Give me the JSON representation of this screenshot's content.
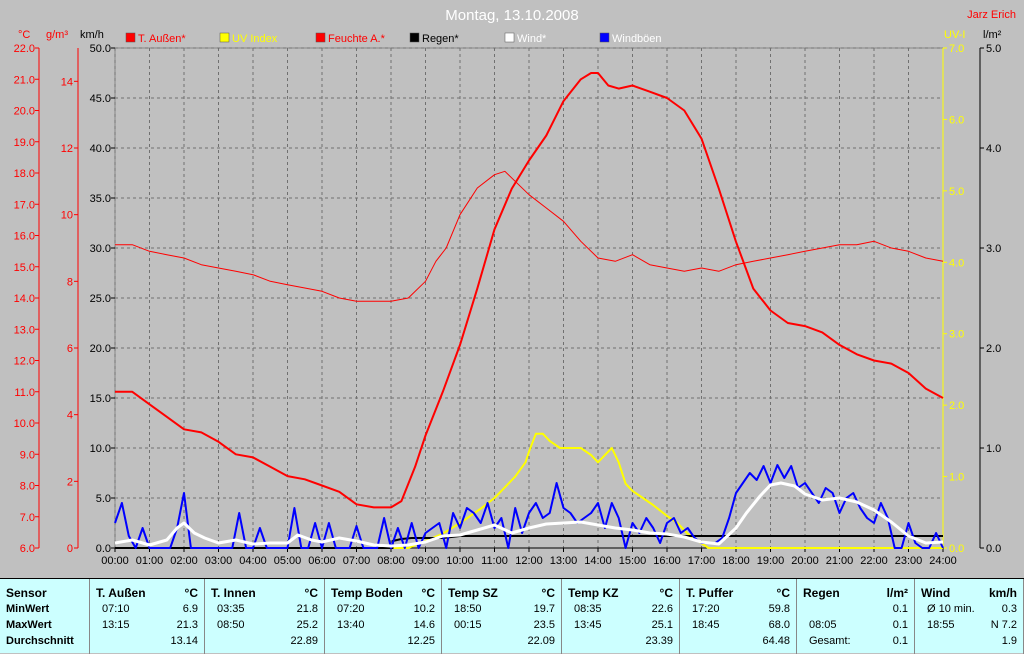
{
  "title": "Montag, 13.10.2008",
  "author": "Jarz Erich",
  "axis_units": {
    "temp": "°C",
    "humidity": "g/m³",
    "wind": "km/h",
    "uv": "UV-I",
    "rain": "l/m²"
  },
  "legend": [
    {
      "label": "T. Außen*",
      "color": "#ff0000",
      "text_color": "#ff0000"
    },
    {
      "label": "UV Index",
      "color": "#ffff00",
      "text_color": "#ffff00"
    },
    {
      "label": "Feuchte A.*",
      "color": "#ff0000",
      "text_color": "#ff0000"
    },
    {
      "label": "Regen*",
      "color": "#000000",
      "text_color": "#000000"
    },
    {
      "label": "Wind*",
      "color": "#ffffff",
      "text_color": "#ffffff"
    },
    {
      "label": "Windböen",
      "color": "#0000ff",
      "text_color": "#ffffff"
    }
  ],
  "chart_data": {
    "type": "line",
    "x_ticks": [
      "00:00",
      "01:00",
      "02:00",
      "03:00",
      "04:00",
      "05:00",
      "06:00",
      "07:00",
      "08:00",
      "09:00",
      "10:00",
      "11:00",
      "12:00",
      "13:00",
      "14:00",
      "15:00",
      "16:00",
      "17:00",
      "18:00",
      "19:00",
      "20:00",
      "21:00",
      "22:00",
      "23:00",
      "24:00"
    ],
    "axes": {
      "temp_c": {
        "ticks": [
          "6.0",
          "7.0",
          "8.0",
          "9.0",
          "10.0",
          "11.0",
          "12.0",
          "13.0",
          "14.0",
          "15.0",
          "16.0",
          "17.0",
          "18.0",
          "19.0",
          "20.0",
          "21.0",
          "22.0"
        ],
        "range": [
          6,
          22
        ],
        "color": "#ff0000"
      },
      "humidity_gm3": {
        "ticks": [
          "0",
          "2",
          "4",
          "6",
          "8",
          "10",
          "12",
          "14"
        ],
        "range": [
          0,
          15
        ],
        "color": "#ff0000"
      },
      "wind_kmh": {
        "ticks": [
          "0.0",
          "5.0",
          "10.0",
          "15.0",
          "20.0",
          "25.0",
          "30.0",
          "35.0",
          "40.0",
          "45.0",
          "50.0"
        ],
        "range": [
          0,
          50
        ],
        "color": "#000000"
      },
      "uv": {
        "ticks": [
          "0.0",
          "1.0",
          "2.0",
          "3.0",
          "4.0",
          "5.0",
          "6.0",
          "7.0"
        ],
        "range": [
          0,
          7
        ],
        "color": "#ffff00"
      },
      "rain_lm2": {
        "ticks": [
          "0.0",
          "1.0",
          "2.0",
          "3.0",
          "4.0",
          "5.0"
        ],
        "range": [
          0,
          5
        ],
        "color": "#000000"
      }
    },
    "grid": true,
    "series": [
      {
        "name": "T. Außen*",
        "axis": "temp_c",
        "color": "#ff0000",
        "width": 2,
        "x": [
          0,
          0.5,
          1,
          1.5,
          2,
          2.5,
          3,
          3.5,
          4,
          4.5,
          5,
          5.5,
          6,
          6.5,
          7,
          7.5,
          8,
          8.3,
          8.7,
          9,
          9.5,
          10,
          10.5,
          11,
          11.5,
          12,
          12.5,
          13,
          13.5,
          13.8,
          14,
          14.3,
          14.6,
          15,
          15.5,
          16,
          16.5,
          17,
          17.5,
          18,
          18.5,
          19,
          19.5,
          20,
          20.5,
          21,
          21.5,
          22,
          22.5,
          23,
          23.5,
          24
        ],
        "y": [
          11.0,
          11.0,
          10.6,
          10.2,
          9.8,
          9.7,
          9.4,
          9.0,
          8.9,
          8.6,
          8.3,
          8.2,
          8.0,
          7.8,
          7.4,
          7.3,
          7.3,
          7.5,
          8.6,
          9.6,
          11.0,
          12.5,
          14.3,
          16.2,
          17.5,
          18.4,
          19.2,
          20.3,
          21.0,
          21.2,
          21.2,
          20.8,
          20.7,
          20.8,
          20.6,
          20.4,
          20.0,
          19.1,
          17.5,
          15.8,
          14.3,
          13.6,
          13.2,
          13.1,
          12.9,
          12.5,
          12.2,
          12.0,
          11.9,
          11.6,
          11.1,
          10.8
        ]
      },
      {
        "name": "Feuchte A.*",
        "axis": "humidity_gm3",
        "color": "#ff0000",
        "width": 1,
        "x": [
          0,
          0.5,
          1,
          1.5,
          2,
          2.5,
          3,
          3.5,
          4,
          4.5,
          5,
          5.5,
          6,
          6.5,
          7,
          7.5,
          8,
          8.5,
          9,
          9.3,
          9.6,
          10,
          10.5,
          11,
          11.3,
          11.6,
          12,
          12.5,
          13,
          13.5,
          14,
          14.5,
          15,
          15.5,
          16,
          16.5,
          17,
          17.5,
          18,
          18.5,
          19,
          19.5,
          20,
          20.5,
          21,
          21.5,
          22,
          22.5,
          23,
          23.5,
          24
        ],
        "y": [
          9.1,
          9.1,
          8.9,
          8.8,
          8.7,
          8.5,
          8.4,
          8.3,
          8.2,
          8.0,
          7.9,
          7.8,
          7.7,
          7.5,
          7.4,
          7.4,
          7.4,
          7.5,
          8.0,
          8.6,
          9.0,
          10.0,
          10.8,
          11.2,
          11.3,
          11.0,
          10.6,
          10.2,
          9.8,
          9.2,
          8.7,
          8.6,
          8.8,
          8.5,
          8.4,
          8.3,
          8.4,
          8.3,
          8.5,
          8.6,
          8.7,
          8.8,
          8.9,
          9.0,
          9.1,
          9.1,
          9.2,
          9.0,
          8.9,
          8.7,
          8.6
        ]
      },
      {
        "name": "UV Index",
        "axis": "uv",
        "color": "#ffff00",
        "width": 2,
        "x": [
          0,
          8.5,
          9,
          9.5,
          10,
          10.3,
          10.6,
          11,
          11.3,
          11.6,
          11.9,
          12,
          12.2,
          12.4,
          12.6,
          12.9,
          13.2,
          13.5,
          13.8,
          14,
          14.2,
          14.4,
          14.6,
          14.8,
          15,
          15.3,
          15.6,
          16,
          16.3,
          16.6,
          16.9,
          17.2,
          24
        ],
        "y": [
          0,
          0,
          0.1,
          0.2,
          0.35,
          0.45,
          0.55,
          0.7,
          0.85,
          1.0,
          1.2,
          1.35,
          1.6,
          1.6,
          1.5,
          1.4,
          1.4,
          1.4,
          1.3,
          1.2,
          1.3,
          1.4,
          1.2,
          0.9,
          0.8,
          0.7,
          0.6,
          0.45,
          0.35,
          0.2,
          0.1,
          0,
          0
        ]
      },
      {
        "name": "Regen*",
        "axis": "rain_lm2",
        "color": "#000000",
        "width": 2,
        "x": [
          0,
          8.05,
          8.05,
          8.3,
          8.6,
          9,
          9.5,
          10,
          24
        ],
        "y": [
          0,
          0,
          0.07,
          0.09,
          0.1,
          0.1,
          0.1,
          0.12,
          0.12
        ]
      },
      {
        "name": "Wind*",
        "axis": "wind_kmh",
        "color": "#ffffff",
        "width": 3,
        "x": [
          0,
          0.5,
          1,
          1.5,
          1.8,
          2,
          2.3,
          2.6,
          3,
          3.5,
          4,
          4.5,
          5,
          5.3,
          5.7,
          6,
          6.5,
          7,
          7.5,
          8,
          8.5,
          9,
          9.5,
          10,
          10.5,
          11,
          11.5,
          12,
          12.5,
          13,
          13.5,
          14,
          14.5,
          15,
          15.5,
          16,
          16.5,
          17,
          17.5,
          18,
          18.3,
          18.7,
          19,
          19.3,
          19.7,
          20,
          20.5,
          21,
          21.5,
          22,
          22.5,
          23,
          23.5,
          24
        ],
        "y": [
          0.5,
          0.8,
          0.3,
          0.8,
          2.0,
          2.5,
          1.5,
          1.0,
          0.5,
          0.8,
          0.4,
          0.5,
          0.5,
          1.3,
          0.8,
          0.6,
          1.0,
          0.7,
          0.3,
          0.2,
          0.3,
          0.6,
          1.2,
          1.3,
          1.8,
          2.3,
          1.5,
          2.0,
          2.4,
          2.5,
          2.6,
          2.3,
          2.0,
          1.8,
          1.5,
          1.4,
          1.1,
          0.6,
          0.4,
          2.0,
          3.5,
          5.2,
          6.3,
          6.5,
          6.2,
          5.4,
          4.8,
          5.0,
          4.6,
          3.8,
          2.6,
          1.2,
          0.5,
          0.6
        ]
      },
      {
        "name": "Windböen",
        "axis": "wind_kmh",
        "color": "#0000ff",
        "width": 2,
        "x": [
          0,
          0.2,
          0.4,
          0.6,
          0.8,
          1,
          1.2,
          1.4,
          1.6,
          1.8,
          2,
          2.2,
          2.4,
          2.6,
          2.8,
          3,
          3.2,
          3.4,
          3.6,
          3.8,
          4,
          4.2,
          4.4,
          4.6,
          4.8,
          5,
          5.2,
          5.4,
          5.6,
          5.8,
          6,
          6.2,
          6.4,
          6.6,
          6.8,
          7,
          7.2,
          7.4,
          7.6,
          7.8,
          8,
          8.2,
          8.4,
          8.6,
          8.8,
          9,
          9.2,
          9.4,
          9.6,
          9.8,
          10,
          10.2,
          10.4,
          10.6,
          10.8,
          11,
          11.2,
          11.4,
          11.6,
          11.8,
          12,
          12.2,
          12.4,
          12.6,
          12.8,
          13,
          13.2,
          13.4,
          13.6,
          13.8,
          14,
          14.2,
          14.4,
          14.6,
          14.8,
          15,
          15.2,
          15.4,
          15.6,
          15.8,
          16,
          16.2,
          16.4,
          16.6,
          16.8,
          17,
          17.2,
          17.4,
          17.6,
          17.8,
          18,
          18.2,
          18.4,
          18.6,
          18.8,
          19,
          19.2,
          19.4,
          19.6,
          19.8,
          20,
          20.2,
          20.4,
          20.6,
          20.8,
          21,
          21.2,
          21.4,
          21.6,
          21.8,
          22,
          22.2,
          22.4,
          22.6,
          22.8,
          23,
          23.2,
          23.4,
          23.6,
          23.8,
          24
        ],
        "y": [
          2.5,
          4.5,
          1.2,
          0,
          2.0,
          0,
          0,
          0,
          0,
          2.0,
          5.5,
          0,
          0,
          0,
          0,
          0,
          0,
          0,
          3.5,
          0,
          0,
          2.0,
          0,
          0,
          0,
          0,
          4.0,
          0,
          0,
          2.5,
          0,
          2.5,
          0,
          0,
          0,
          2.2,
          0,
          0,
          0,
          3.0,
          0,
          2.0,
          0,
          2.5,
          0,
          1.5,
          2.0,
          2.5,
          0,
          3.5,
          2.0,
          4.0,
          3.5,
          2.5,
          4.5,
          2.0,
          3.0,
          0,
          4.0,
          1.5,
          3.5,
          4.5,
          3.0,
          3.5,
          6.5,
          4.0,
          3.5,
          2.5,
          3.0,
          3.5,
          4.5,
          2.0,
          4.5,
          3.0,
          0,
          2.5,
          1.5,
          3.0,
          2.0,
          0.5,
          2.5,
          3.0,
          1.5,
          2.0,
          1.0,
          0.5,
          0.5,
          0.5,
          1.0,
          3.0,
          5.5,
          6.5,
          7.5,
          6.8,
          8.2,
          6.5,
          8.3,
          7.0,
          8.2,
          6.0,
          6.5,
          5.5,
          4.5,
          6.0,
          5.5,
          3.5,
          5.0,
          5.5,
          4.0,
          3.0,
          2.5,
          4.5,
          3.0,
          0,
          0,
          2.5,
          0.5,
          0,
          0,
          1.5,
          0
        ]
      }
    ]
  },
  "stats_table": {
    "row_labels": {
      "sensor": "Sensor",
      "min": "MinWert",
      "max": "MaxWert",
      "avg": "Durchschnitt"
    },
    "columns": [
      {
        "name": "T. Außen",
        "unit": "°C",
        "min_time": "07:10",
        "min_val": "6.9",
        "max_time": "13:15",
        "max_val": "21.3",
        "avg": "13.14"
      },
      {
        "name": "T. Innen",
        "unit": "°C",
        "min_time": "03:35",
        "min_val": "21.8",
        "max_time": "08:50",
        "max_val": "25.2",
        "avg": "22.89"
      },
      {
        "name": "Temp Boden",
        "unit": "°C",
        "min_time": "07:20",
        "min_val": "10.2",
        "max_time": "13:40",
        "max_val": "14.6",
        "avg": "12.25"
      },
      {
        "name": "Temp SZ",
        "unit": "°C",
        "min_time": "18:50",
        "min_val": "19.7",
        "max_time": "00:15",
        "max_val": "23.5",
        "avg": "22.09"
      },
      {
        "name": "Temp KZ",
        "unit": "°C",
        "min_time": "08:35",
        "min_val": "22.6",
        "max_time": "13:45",
        "max_val": "25.1",
        "avg": "23.39"
      },
      {
        "name": "T. Puffer",
        "unit": "°C",
        "min_time": "17:20",
        "min_val": "59.8",
        "max_time": "18:45",
        "max_val": "68.0",
        "avg": "64.48"
      },
      {
        "name": "Regen",
        "unit": "l/m²",
        "min_time": "",
        "min_val": "0.1",
        "max_time": "08:05",
        "max_val": "0.1",
        "avg_label": "Gesamt:",
        "avg": "0.1"
      },
      {
        "name": "Wind",
        "unit": "km/h",
        "min_time": "Ø 10 min.",
        "min_val": "0.3",
        "max_time": "18:55",
        "max_val": "N 7.2",
        "avg": "1.9"
      }
    ]
  }
}
